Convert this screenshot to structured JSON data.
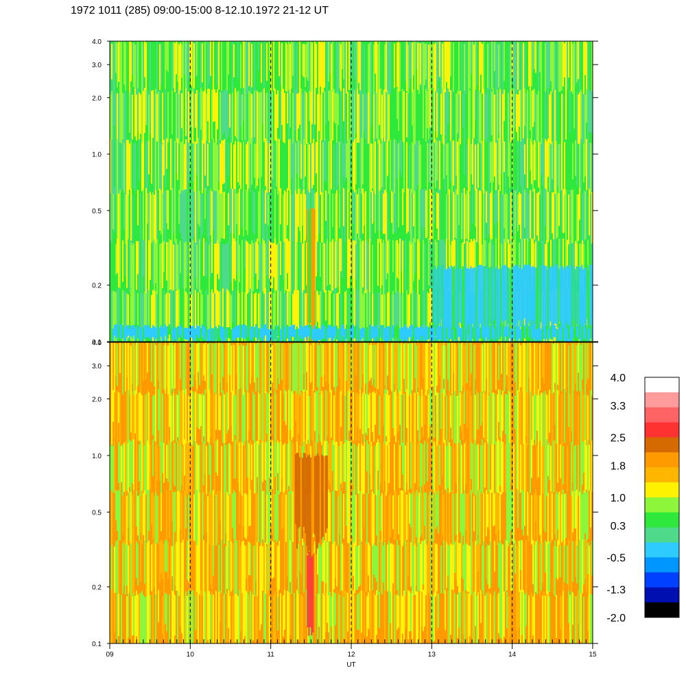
{
  "chart_data": {
    "type": "heatmap",
    "title": "1972 1011 (285) 09:00-15:00 8-12.10.1972  21-12 UT",
    "xlabel": "UT",
    "x_ticks": [
      "09",
      "10",
      "11",
      "12",
      "13",
      "14",
      "15"
    ],
    "xlim": [
      9,
      15
    ],
    "x_grid_dashed_at": [
      10,
      11,
      12,
      13,
      14
    ],
    "y_scale": "log",
    "ylim": [
      0.1,
      4.0
    ],
    "y_ticks": [
      "0.1",
      "0.2",
      "0.5",
      "1.0",
      "2.0",
      "3.0",
      "4.0"
    ],
    "panels": [
      {
        "position": "top",
        "dominant_colors": [
          "#2ee83b",
          "#4ed98b",
          "#8df53a",
          "#fff20a"
        ],
        "features": [
          {
            "x": 11.5,
            "y_range": [
              0.1,
              0.5
            ],
            "color": "#ff9b00",
            "description": "orange vertical streak"
          },
          {
            "x_range": [
              13.0,
              15.0
            ],
            "y_range": [
              0.1,
              0.25
            ],
            "color": "#2ecbff",
            "description": "cyan region"
          },
          {
            "x_range": [
              9.0,
              15.0
            ],
            "y_range": [
              0.1,
              0.12
            ],
            "color": "#2ecbff",
            "description": "cyan band at bottom"
          }
        ]
      },
      {
        "position": "bottom",
        "dominant_colors": [
          "#ff9b00",
          "#ffb600",
          "#fff20a",
          "#8df53a"
        ],
        "features": [
          {
            "x": 11.5,
            "y_range": [
              0.1,
              0.3
            ],
            "color": "#ff3a3a",
            "description": "red/pink vertical streak"
          },
          {
            "x_range": [
              11.3,
              11.7
            ],
            "y_range": [
              0.3,
              1.0
            ],
            "color": "#d46a00",
            "description": "dark orange column"
          }
        ]
      }
    ],
    "colorbar": {
      "labels": [
        "4.0",
        "3.3",
        "2.5",
        "1.8",
        "1.0",
        "0.3",
        "-0.5",
        "-1.3",
        "-2.0"
      ],
      "range": [
        -2.0,
        4.0
      ],
      "colors_top_to_bottom": [
        "#ffffff",
        "#ff9b9b",
        "#ff6464",
        "#ff3232",
        "#d46a00",
        "#ff9b00",
        "#ffb600",
        "#fff200",
        "#8df53a",
        "#2ee83b",
        "#4ed98b",
        "#2ecbff",
        "#0096ff",
        "#0041ff",
        "#0010b0",
        "#000000"
      ]
    }
  }
}
